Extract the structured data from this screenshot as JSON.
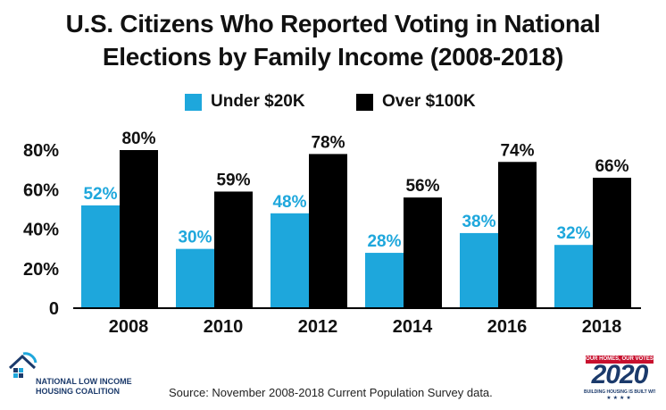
{
  "chart_data": {
    "type": "bar",
    "title_line1": "U.S. Citizens Who Reported Voting in National",
    "title_line2": "Elections by Family Income (2008-2018)",
    "categories": [
      "2008",
      "2010",
      "2012",
      "2014",
      "2016",
      "2018"
    ],
    "series": [
      {
        "name": "Under $20K",
        "values": [
          52,
          30,
          48,
          28,
          38,
          32
        ],
        "labels": [
          "52%",
          "30%",
          "48%",
          "28%",
          "38%",
          "32%"
        ],
        "color": "#1ea7dc"
      },
      {
        "name": "Over $100K",
        "values": [
          80,
          59,
          78,
          56,
          74,
          66
        ],
        "labels": [
          "80%",
          "59%",
          "78%",
          "56%",
          "74%",
          "66%"
        ],
        "color": "#000000"
      }
    ],
    "y_ticks": [
      {
        "value": 0,
        "label": "0"
      },
      {
        "value": 20,
        "label": "20%"
      },
      {
        "value": 40,
        "label": "40%"
      },
      {
        "value": 60,
        "label": "60%"
      },
      {
        "value": 80,
        "label": "80%"
      }
    ],
    "ylim": [
      0,
      80
    ],
    "grid": false,
    "legend": "top-center",
    "xlabel": "",
    "ylabel": ""
  },
  "footer": {
    "source": "Source: November 2008-2018 Current Population Survey data.",
    "org_line1": "NATIONAL LOW INCOME",
    "org_line2": "HOUSING COALITION",
    "badge_top": "OUR HOMES, OUR VOTES",
    "badge_year": "2020",
    "badge_tagline": "BUILDING HOUSING IS BUILT WITH BALLOTS",
    "org_icon": "house-logo-icon",
    "org_color": "#1b3a6b",
    "badge_red": "#c8102e"
  }
}
